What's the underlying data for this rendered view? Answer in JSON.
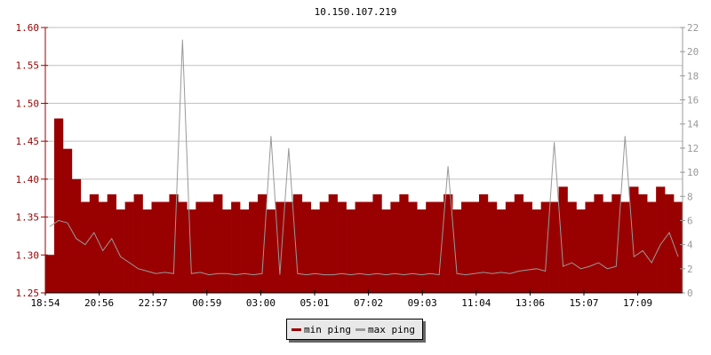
{
  "chart_data": {
    "type": "bar+line",
    "title": "10.150.107.219",
    "colors": {
      "min": "#990000",
      "max": "#999999",
      "left_axis": "#990000",
      "right_axis": "#999999"
    },
    "grid": true,
    "y_left": {
      "range": [
        1.25,
        1.6
      ],
      "ticks": [
        "1.25",
        "1.30",
        "1.35",
        "1.40",
        "1.45",
        "1.50",
        "1.55",
        "1.60"
      ]
    },
    "y_right": {
      "range": [
        0,
        22
      ],
      "ticks": [
        "0",
        "2",
        "4",
        "6",
        "8",
        "10",
        "12",
        "14",
        "16",
        "18",
        "20",
        "22"
      ]
    },
    "x_ticks": [
      "18:54",
      "20:56",
      "22:57",
      "00:59",
      "03:00",
      "05:01",
      "07:02",
      "09:03",
      "11:04",
      "13:06",
      "15:07",
      "17:09"
    ],
    "legend": {
      "placement": "bottom-center",
      "items": [
        "min ping",
        "max ping"
      ]
    },
    "x": [
      "18:54",
      "19:14",
      "19:34",
      "19:54",
      "20:14",
      "20:34",
      "20:54",
      "21:14",
      "21:34",
      "21:54",
      "22:14",
      "22:34",
      "22:54",
      "23:14",
      "23:34",
      "23:54",
      "00:14",
      "00:34",
      "00:54",
      "01:14",
      "01:34",
      "01:54",
      "02:14",
      "02:34",
      "02:54",
      "03:14",
      "03:34",
      "03:54",
      "04:14",
      "04:34",
      "04:54",
      "05:14",
      "05:34",
      "05:54",
      "06:14",
      "06:34",
      "06:54",
      "07:14",
      "07:34",
      "07:54",
      "08:14",
      "08:34",
      "08:54",
      "09:14",
      "09:34",
      "09:54",
      "10:14",
      "10:34",
      "10:54",
      "11:14",
      "11:34",
      "11:54",
      "12:14",
      "12:34",
      "12:54",
      "13:14",
      "13:34",
      "13:54",
      "14:14",
      "14:34",
      "14:54",
      "15:14",
      "15:34",
      "15:54",
      "16:14",
      "16:34",
      "16:54",
      "17:14",
      "17:34",
      "17:54",
      "18:14",
      "18:34"
    ],
    "series": [
      {
        "name": "min ping",
        "axis": "left",
        "values": [
          1.3,
          1.48,
          1.44,
          1.4,
          1.37,
          1.38,
          1.37,
          1.38,
          1.36,
          1.37,
          1.38,
          1.36,
          1.37,
          1.37,
          1.38,
          1.37,
          1.36,
          1.37,
          1.37,
          1.38,
          1.36,
          1.37,
          1.36,
          1.37,
          1.38,
          1.36,
          1.37,
          1.37,
          1.38,
          1.37,
          1.36,
          1.37,
          1.38,
          1.37,
          1.36,
          1.37,
          1.37,
          1.38,
          1.36,
          1.37,
          1.38,
          1.37,
          1.36,
          1.37,
          1.37,
          1.38,
          1.36,
          1.37,
          1.37,
          1.38,
          1.37,
          1.36,
          1.37,
          1.38,
          1.37,
          1.36,
          1.37,
          1.37,
          1.39,
          1.37,
          1.36,
          1.37,
          1.38,
          1.37,
          1.38,
          1.37,
          1.39,
          1.38,
          1.37,
          1.39,
          1.38,
          1.37
        ]
      },
      {
        "name": "max ping",
        "axis": "right",
        "values": [
          5.5,
          6.0,
          5.8,
          4.5,
          4.0,
          5.0,
          3.5,
          4.5,
          3.0,
          2.5,
          2.0,
          1.8,
          1.6,
          1.7,
          1.6,
          21.0,
          1.6,
          1.7,
          1.5,
          1.6,
          1.6,
          1.5,
          1.6,
          1.5,
          1.6,
          13.0,
          1.5,
          12.0,
          1.6,
          1.5,
          1.6,
          1.5,
          1.5,
          1.6,
          1.5,
          1.6,
          1.5,
          1.6,
          1.5,
          1.6,
          1.5,
          1.6,
          1.5,
          1.6,
          1.5,
          10.5,
          1.6,
          1.5,
          1.6,
          1.7,
          1.6,
          1.7,
          1.6,
          1.8,
          1.9,
          2.0,
          1.8,
          12.5,
          2.2,
          2.5,
          2.0,
          2.2,
          2.5,
          2.0,
          2.2,
          13.0,
          3.0,
          3.5,
          2.5,
          4.0,
          5.0,
          3.0
        ]
      }
    ]
  }
}
